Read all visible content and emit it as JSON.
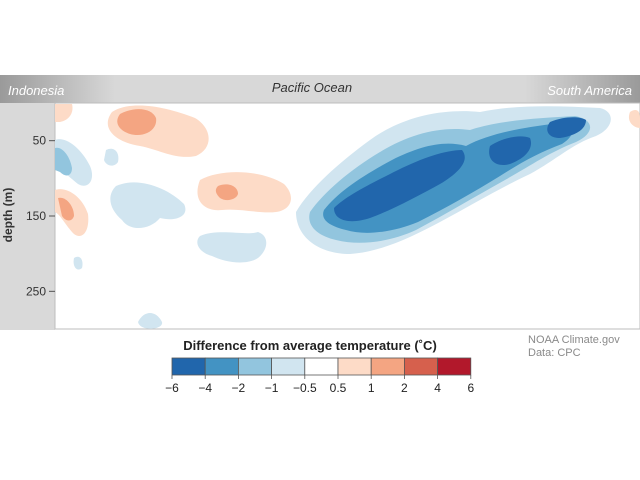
{
  "chart_data": {
    "type": "heatmap",
    "title": "Pacific Ocean",
    "region_labels": {
      "left": "Indonesia",
      "center": "Pacific Ocean",
      "right": "South America"
    },
    "ylabel": "depth (m)",
    "yticks": [
      "50",
      "150",
      "250"
    ],
    "ytick_values": [
      50,
      150,
      250
    ],
    "ylim": [
      300,
      0
    ],
    "colorbar": {
      "title": "Difference from average temperature (˚C)",
      "tick_labels": [
        "−6",
        "−4",
        "−2",
        "−1",
        "−0.5",
        "0.5",
        "1",
        "2",
        "4",
        "6"
      ],
      "boundaries": [
        -6,
        -4,
        -2,
        -1,
        -0.5,
        0.5,
        1,
        2,
        4,
        6
      ],
      "colors": [
        "#2166ac",
        "#4393c3",
        "#92c5de",
        "#d1e5f0",
        "#ffffff",
        "#fddbc7",
        "#f4a582",
        "#d6604d",
        "#b2182b"
      ]
    },
    "anomalies": [
      {
        "lon_frac": 0.25,
        "depth": 45,
        "value": 1.2
      },
      {
        "lon_frac": 0.53,
        "depth": 135,
        "value": -2.5
      },
      {
        "lon_frac": 0.64,
        "depth": 95,
        "value": -2.6
      },
      {
        "lon_frac": 0.75,
        "depth": 70,
        "value": -2.2
      },
      {
        "lon_frac": 0.9,
        "depth": 40,
        "value": -2.1
      },
      {
        "lon_frac": 0.08,
        "depth": 170,
        "value": 1.1
      },
      {
        "lon_frac": 0.38,
        "depth": 120,
        "value": 2.0
      }
    ]
  },
  "credit": {
    "line1": "NOAA Climate.gov",
    "line2": "Data: CPC"
  }
}
